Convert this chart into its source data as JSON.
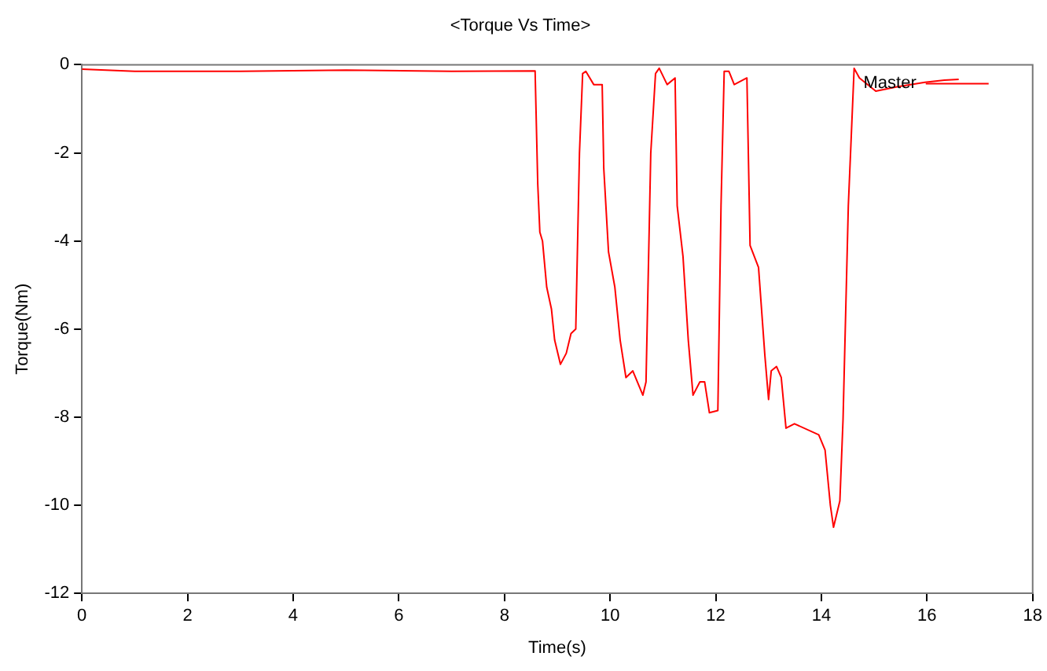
{
  "chart_data": {
    "type": "line",
    "title": "<Torque Vs Time>",
    "xlabel": "Time(s)",
    "ylabel": "Torque(Nm)",
    "xlim": [
      0,
      18
    ],
    "xticks": [
      0,
      2,
      4,
      6,
      8,
      10,
      12,
      14,
      16,
      18
    ],
    "ylim": [
      -12,
      0
    ],
    "yticks": [
      -12,
      -10,
      -8,
      -6,
      -4,
      -2,
      0
    ],
    "grid": false,
    "legend": "top right",
    "marker": "none",
    "line_style": "solid",
    "series": [
      {
        "name": "Master",
        "color": "#ff0000",
        "x": [
          0,
          1,
          3,
          5,
          7,
          8.58,
          8.63,
          8.67,
          8.72,
          8.8,
          8.89,
          8.95,
          9.06,
          9.17,
          9.26,
          9.35,
          9.42,
          9.48,
          9.54,
          9.69,
          9.85,
          9.88,
          9.97,
          10.09,
          10.19,
          10.3,
          10.43,
          10.62,
          10.68,
          10.77,
          10.86,
          10.93,
          11.08,
          11.23,
          11.27,
          11.38,
          11.48,
          11.57,
          11.7,
          11.79,
          11.88,
          12.04,
          12.1,
          12.16,
          12.25,
          12.35,
          12.59,
          12.65,
          12.81,
          12.93,
          13.0,
          13.05,
          13.15,
          13.24,
          13.33,
          13.49,
          13.95,
          14.07,
          14.17,
          14.23,
          14.35,
          14.41,
          14.51,
          14.62,
          14.72,
          15.03,
          15.43,
          15.96,
          16.33,
          16.6
        ],
        "values": [
          -0.1,
          -0.15,
          -0.15,
          -0.12,
          -0.15,
          -0.14,
          -2.7,
          -3.8,
          -4.0,
          -5.05,
          -5.55,
          -6.25,
          -6.8,
          -6.55,
          -6.1,
          -6.0,
          -2.0,
          -0.2,
          -0.15,
          -0.45,
          -0.45,
          -2.35,
          -4.25,
          -5.05,
          -6.25,
          -7.1,
          -6.95,
          -7.5,
          -7.2,
          -2.0,
          -0.2,
          -0.08,
          -0.45,
          -0.3,
          -3.2,
          -4.35,
          -6.25,
          -7.5,
          -7.2,
          -7.2,
          -7.9,
          -7.85,
          -3.2,
          -0.15,
          -0.15,
          -0.45,
          -0.3,
          -4.1,
          -4.6,
          -6.6,
          -7.6,
          -6.95,
          -6.85,
          -7.1,
          -8.25,
          -8.15,
          -8.4,
          -8.75,
          -10.0,
          -10.5,
          -9.9,
          -8.05,
          -3.2,
          -0.08,
          -0.3,
          -0.6,
          -0.5,
          -0.4,
          -0.35,
          -0.33
        ]
      }
    ]
  }
}
